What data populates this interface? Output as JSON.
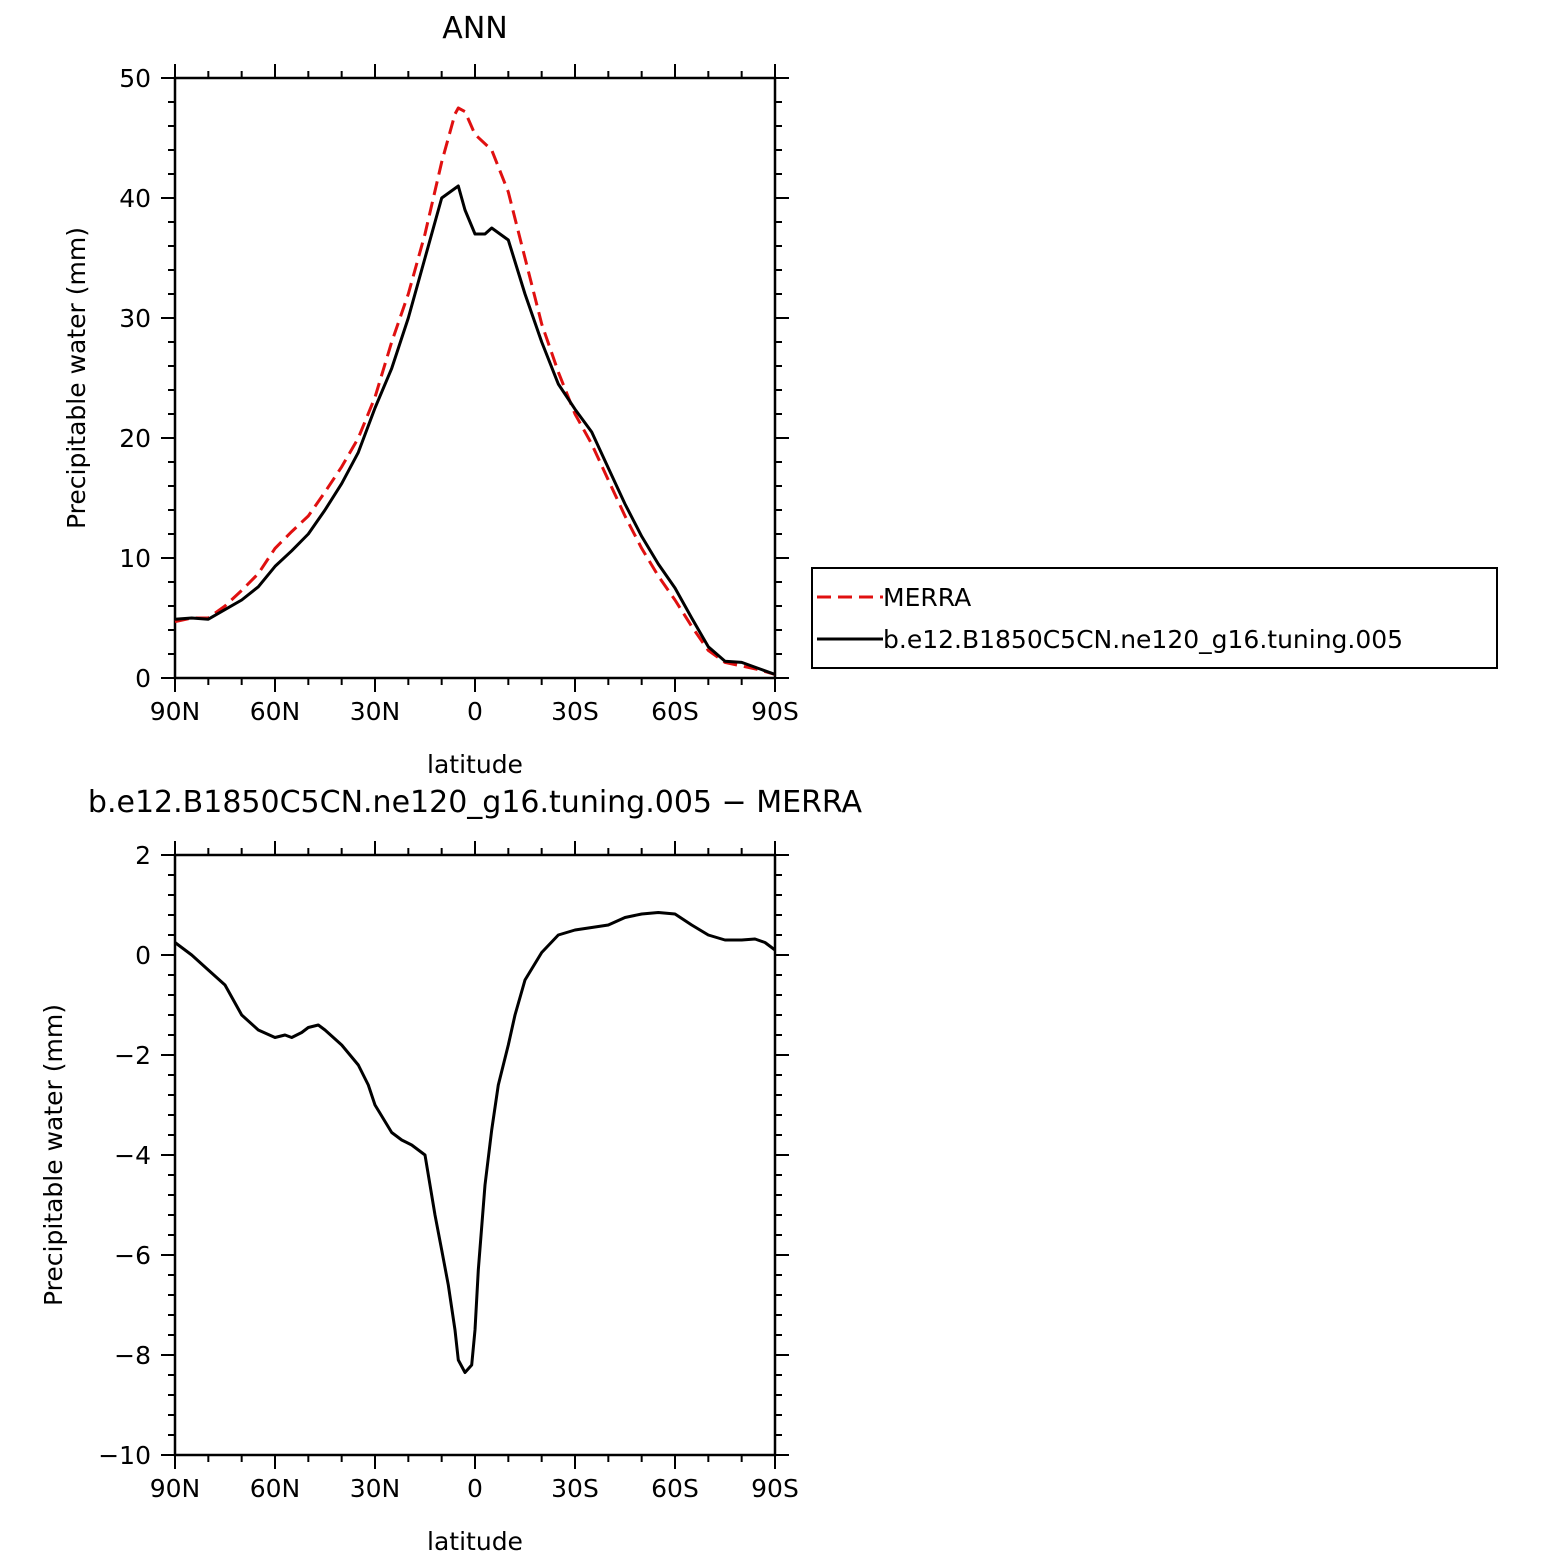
{
  "chart_data": [
    {
      "type": "line",
      "title": "ANN",
      "xlabel": "latitude",
      "ylabel": "Precipitable water (mm)",
      "xlim": [
        90,
        -90
      ],
      "ylim": [
        0,
        50
      ],
      "xticks": [
        {
          "value": 90,
          "label": "90N"
        },
        {
          "value": 60,
          "label": "60N"
        },
        {
          "value": 30,
          "label": "30N"
        },
        {
          "value": 0,
          "label": "0"
        },
        {
          "value": -30,
          "label": "30S"
        },
        {
          "value": -60,
          "label": "60S"
        },
        {
          "value": -90,
          "label": "90S"
        }
      ],
      "yticks": [
        0,
        10,
        20,
        30,
        40,
        50
      ],
      "legend": {
        "position": "right"
      },
      "series": [
        {
          "name": "MERRA",
          "color": "#e01010",
          "dash": "dashed",
          "x": [
            90,
            85,
            80,
            75,
            70,
            65,
            60,
            55,
            50,
            45,
            40,
            35,
            30,
            25,
            20,
            15,
            10,
            6,
            5,
            3,
            0,
            -5,
            -10,
            -15,
            -20,
            -25,
            -30,
            -35,
            -40,
            -45,
            -50,
            -55,
            -60,
            -65,
            -70,
            -75,
            -80,
            -85,
            -90
          ],
          "y": [
            4.7,
            5.0,
            5.0,
            6.0,
            7.3,
            8.7,
            10.8,
            12.2,
            13.5,
            15.5,
            17.6,
            20.0,
            23.4,
            28.0,
            32.0,
            37.0,
            43.0,
            47.0,
            47.5,
            47.2,
            45.3,
            44.0,
            40.5,
            35.0,
            29.5,
            25.5,
            22.0,
            19.5,
            16.5,
            13.5,
            10.8,
            8.5,
            6.5,
            4.3,
            2.3,
            1.3,
            1.0,
            0.7,
            0.3
          ]
        },
        {
          "name": "b.e12.B1850C5CN.ne120_g16.tuning.005",
          "color": "#000000",
          "dash": "solid",
          "x": [
            90,
            85,
            80,
            75,
            70,
            65,
            60,
            55,
            50,
            45,
            40,
            35,
            30,
            25,
            20,
            15,
            10,
            5,
            3,
            0,
            -3,
            -5,
            -10,
            -15,
            -20,
            -25,
            -30,
            -35,
            -40,
            -45,
            -50,
            -55,
            -60,
            -65,
            -70,
            -75,
            -80,
            -85,
            -90
          ],
          "y": [
            4.9,
            5.0,
            4.9,
            5.7,
            6.5,
            7.6,
            9.3,
            10.6,
            12.0,
            14.0,
            16.2,
            18.8,
            22.5,
            25.8,
            30.0,
            35.0,
            40.0,
            41.0,
            39.0,
            37.0,
            37.0,
            37.5,
            36.5,
            32.0,
            28.0,
            24.5,
            22.4,
            20.5,
            17.5,
            14.5,
            11.8,
            9.5,
            7.5,
            5.0,
            2.6,
            1.4,
            1.3,
            0.8,
            0.3
          ]
        }
      ]
    },
    {
      "type": "line",
      "title": "b.e12.B1850C5CN.ne120_g16.tuning.005 − MERRA",
      "xlabel": "latitude",
      "ylabel": "Precipitable water (mm)",
      "xlim": [
        90,
        -90
      ],
      "ylim": [
        -10,
        2
      ],
      "xticks": [
        {
          "value": 90,
          "label": "90N"
        },
        {
          "value": 60,
          "label": "60N"
        },
        {
          "value": 30,
          "label": "30N"
        },
        {
          "value": 0,
          "label": "0"
        },
        {
          "value": -30,
          "label": "30S"
        },
        {
          "value": -60,
          "label": "60S"
        },
        {
          "value": -90,
          "label": "90S"
        }
      ],
      "yticks": [
        -10,
        -8,
        -6,
        -4,
        -2,
        0,
        2
      ],
      "series": [
        {
          "color": "#000000",
          "dash": "solid",
          "x": [
            90,
            85,
            80,
            75,
            70,
            65,
            60,
            57,
            55,
            52,
            50,
            47,
            45,
            40,
            35,
            32,
            30,
            25,
            22,
            19,
            15,
            12,
            10,
            8,
            6,
            5,
            3,
            1,
            0,
            -1,
            -3,
            -5,
            -7,
            -10,
            -12,
            -15,
            -20,
            -25,
            -30,
            -35,
            -40,
            -45,
            -50,
            -55,
            -60,
            -65,
            -70,
            -75,
            -80,
            -84,
            -87,
            -90
          ],
          "y": [
            0.25,
            0.0,
            -0.3,
            -0.6,
            -1.2,
            -1.5,
            -1.65,
            -1.6,
            -1.65,
            -1.55,
            -1.45,
            -1.4,
            -1.5,
            -1.8,
            -2.2,
            -2.6,
            -3.0,
            -3.55,
            -3.7,
            -3.8,
            -4.0,
            -5.2,
            -5.9,
            -6.6,
            -7.5,
            -8.1,
            -8.35,
            -8.2,
            -7.5,
            -6.3,
            -4.6,
            -3.5,
            -2.6,
            -1.8,
            -1.2,
            -0.5,
            0.05,
            0.4,
            0.5,
            0.55,
            0.6,
            0.75,
            0.82,
            0.85,
            0.82,
            0.6,
            0.4,
            0.3,
            0.3,
            0.32,
            0.25,
            0.1
          ]
        }
      ]
    }
  ]
}
